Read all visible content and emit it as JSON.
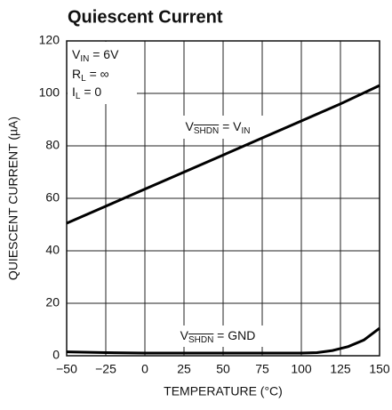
{
  "chart_data": {
    "type": "line",
    "title": "Quiescent Current",
    "xlabel": "TEMPERATURE (°C)",
    "ylabel": "QUIESCENT CURRENT (µA)",
    "xlim": [
      -50,
      150
    ],
    "ylim": [
      0,
      120
    ],
    "xticks": [
      {
        "value": -50,
        "label": "−50"
      },
      {
        "value": -25,
        "label": "−25"
      },
      0,
      25,
      50,
      75,
      100,
      125,
      150
    ],
    "yticks": [
      0,
      20,
      40,
      60,
      80,
      100,
      120
    ],
    "grid": true,
    "annotations": [
      [
        "V",
        "IN",
        " = 6V"
      ],
      [
        "R",
        "L",
        " = ∞"
      ],
      [
        "I",
        "L",
        " = 0"
      ],
      [
        "V",
        "SHDN",
        " = V",
        "IN"
      ],
      [
        "V",
        "SHDN",
        " = GND"
      ]
    ],
    "series": [
      {
        "color": "#000000",
        "x": [
          -50,
          -25,
          0,
          25,
          50,
          75,
          100,
          125,
          150
        ],
        "values": [
          50.5,
          57,
          63.5,
          70,
          76.5,
          83,
          89.5,
          96,
          103
        ]
      },
      {
        "color": "#000000",
        "x": [
          -50,
          -25,
          0,
          25,
          50,
          75,
          100,
          110,
          120,
          130,
          140,
          150
        ],
        "values": [
          1.5,
          1.2,
          1,
          1,
          1,
          1,
          1,
          1.2,
          2,
          3.5,
          6,
          10.5
        ]
      }
    ]
  }
}
